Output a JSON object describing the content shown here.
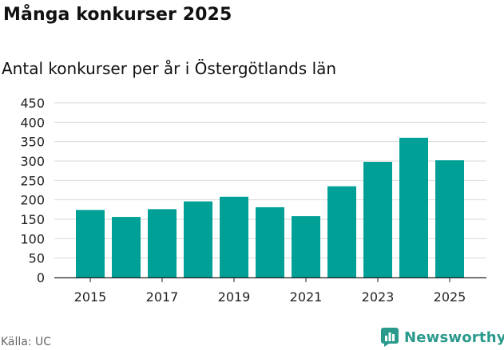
{
  "title": "Många konkurser 2025",
  "subtitle": "Antal konkurser per år i Östergötlands län",
  "source": "Källa: UC",
  "brand": "Newsworthy",
  "colors": {
    "bar": "#00a096",
    "grid": "#d9d9d9",
    "axis": "#222222",
    "brand": "#2a9a8c"
  },
  "chart_data": {
    "type": "bar",
    "title": "Många konkurser 2025",
    "subtitle": "Antal konkurser per år i Östergötlands län",
    "xlabel": "",
    "ylabel": "",
    "categories": [
      "2015",
      "2016",
      "2017",
      "2018",
      "2019",
      "2020",
      "2021",
      "2022",
      "2023",
      "2024",
      "2025"
    ],
    "values": [
      174,
      156,
      176,
      196,
      208,
      181,
      158,
      235,
      298,
      360,
      302
    ],
    "x_tick_labels": [
      "2015",
      "2017",
      "2019",
      "2021",
      "2023",
      "2025"
    ],
    "y_ticks": [
      0,
      50,
      100,
      150,
      200,
      250,
      300,
      350,
      400,
      450
    ],
    "ylim": [
      0,
      450
    ],
    "grid": true,
    "legend": "none"
  }
}
